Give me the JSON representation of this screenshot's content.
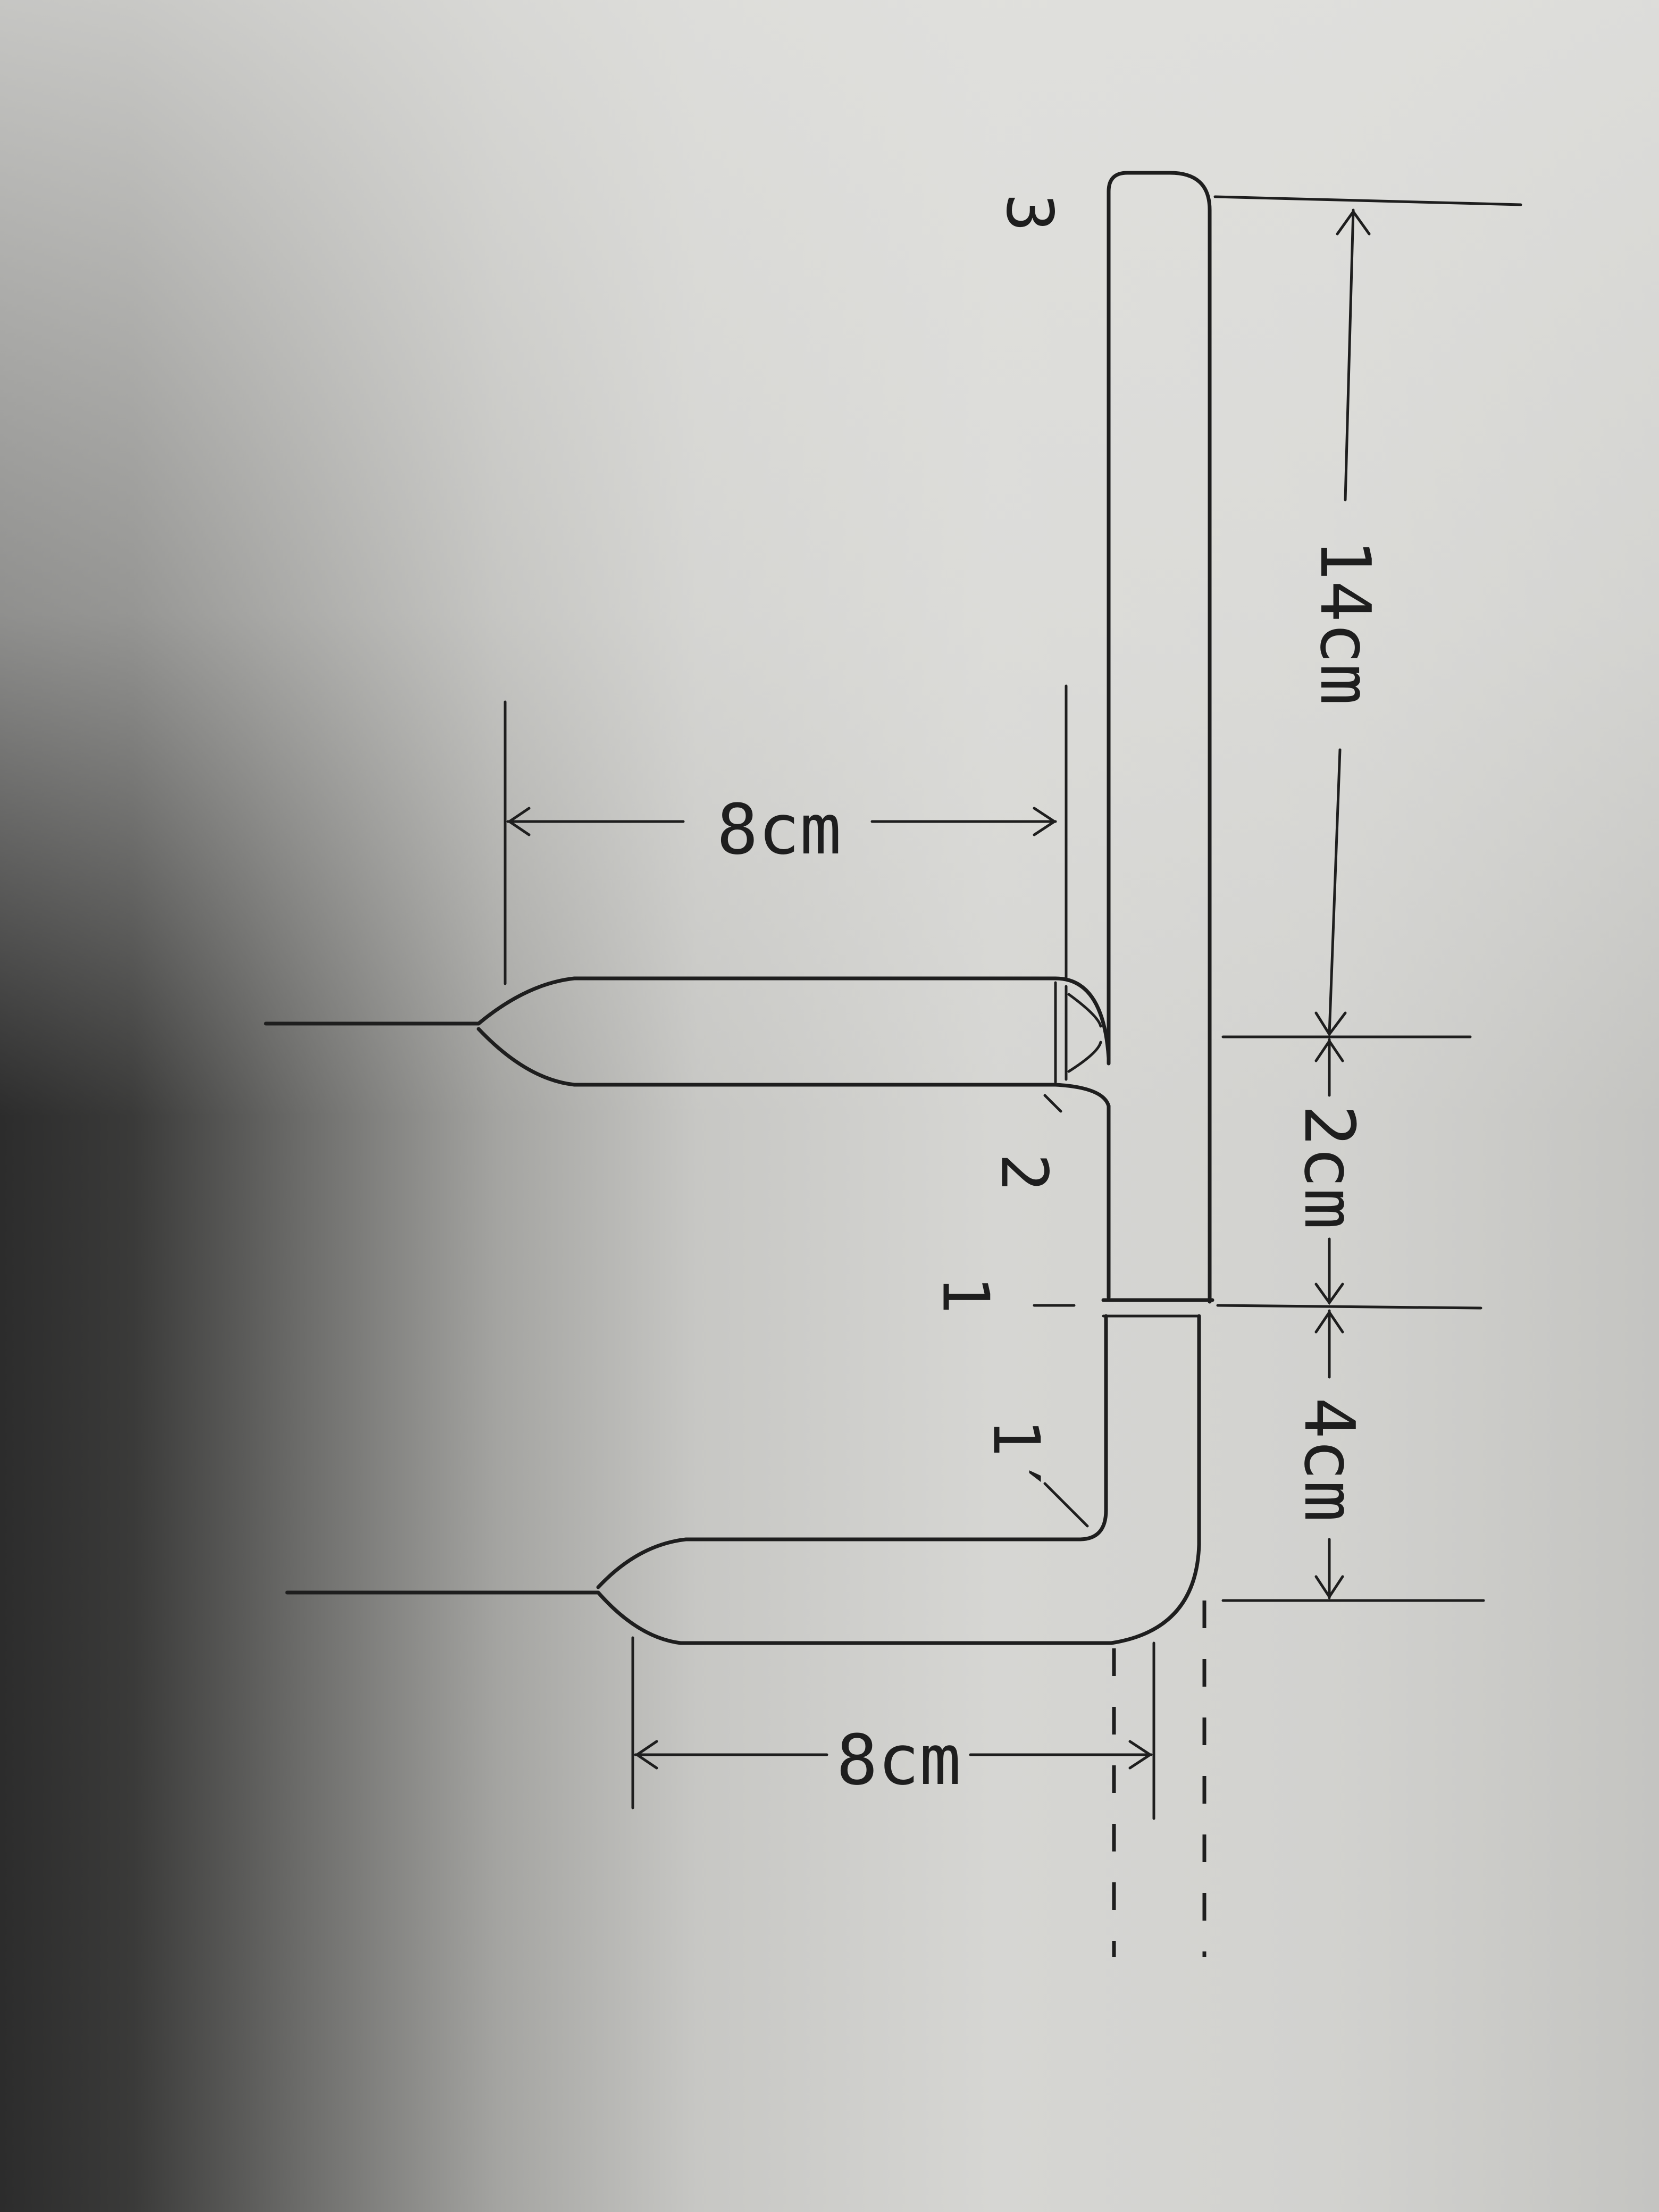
{
  "diagram": {
    "part_labels": {
      "label_1": "1",
      "label_1_prime": "1′",
      "label_2": "2",
      "label_3": "3"
    },
    "dimensions": {
      "main_tube_length": "14cm",
      "tee_section": "2cm",
      "lower_section": "4cm",
      "upper_side_arm": "8cm",
      "lower_side_arm": "8cm"
    }
  }
}
